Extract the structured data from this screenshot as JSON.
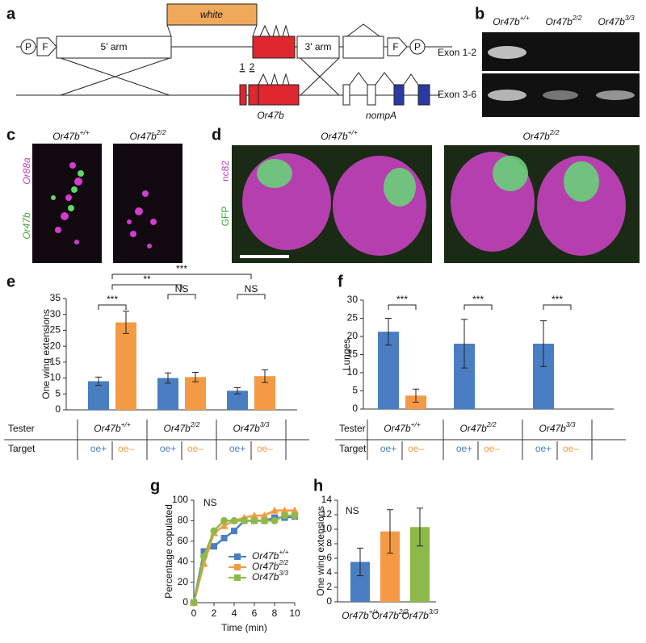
{
  "panels": {
    "a": {
      "label": "a",
      "white": "white",
      "promoter": "P",
      "frt": "F",
      "arm5": "5' arm",
      "arm3": "3' arm",
      "exon1": "1",
      "exon2": "2",
      "gene1": "Or47b",
      "gene2": "nompA"
    },
    "b": {
      "label": "b",
      "genotypes": [
        "Or47b+/+",
        "Or47b2/2",
        "Or47b3/3"
      ],
      "rows": [
        "Exon 1-2",
        "Exon 3-6"
      ]
    },
    "c": {
      "label": "c",
      "genotypes": [
        "Or47b+/+",
        "Or47b2/2"
      ],
      "stain1": "Or88a",
      "stain2": "Or47b"
    },
    "d": {
      "label": "d",
      "genotypes": [
        "Or47b+/+",
        "Or47b2/2"
      ],
      "stain1": "nc82",
      "stain2": "GFP"
    }
  },
  "chart_data": [
    {
      "type": "bar",
      "panel": "e",
      "ylabel": "One wing extensions",
      "row1": "Tester",
      "row2": "Target",
      "categories": [
        "Or47b+/+",
        "Or47b2/2",
        "Or47b3/3"
      ],
      "series": [
        {
          "name": "oe+",
          "color": "#4a7ec2",
          "values": [
            9,
            10,
            6
          ],
          "errors": [
            1.3,
            1.6,
            1
          ]
        },
        {
          "name": "oe–",
          "color": "#f59a44",
          "values": [
            27.5,
            10.3,
            10.6
          ],
          "errors": [
            3.5,
            1.5,
            2
          ]
        }
      ],
      "annotations": [
        "***",
        "**",
        "NS",
        "***",
        "NS"
      ],
      "ylim": [
        0,
        35
      ],
      "yticks": [
        0,
        5,
        10,
        15,
        20,
        25,
        30,
        35
      ]
    },
    {
      "type": "bar",
      "panel": "f",
      "ylabel": "Lunges",
      "row1": "Tester",
      "row2": "Target",
      "categories": [
        "Or47b+/+",
        "Or47b2/2",
        "Or47b3/3"
      ],
      "series": [
        {
          "name": "oe+",
          "color": "#4a7ec2",
          "values": [
            21.3,
            18,
            18
          ],
          "errors": [
            3.7,
            6.7,
            6.3
          ]
        },
        {
          "name": "oe–",
          "color": "#f59a44",
          "values": [
            3.7,
            0,
            0
          ],
          "errors": [
            1.8,
            0,
            0
          ]
        }
      ],
      "annotations": [
        "***",
        "***",
        "***"
      ],
      "ylim": [
        0,
        30
      ],
      "yticks": [
        0,
        5,
        10,
        15,
        20,
        25,
        30
      ]
    },
    {
      "type": "line",
      "panel": "g",
      "xlabel": "Time (min)",
      "ylabel": "Percentage copulated",
      "annotation": "NS",
      "x": [
        0,
        1,
        2,
        3,
        4,
        5,
        6,
        7,
        8,
        9,
        10
      ],
      "series": [
        {
          "name": "Or47b+/+",
          "color": "#4a7ec2",
          "marker": "square",
          "values": [
            0,
            50,
            55,
            63,
            70,
            80,
            80,
            80,
            83,
            83,
            84
          ]
        },
        {
          "name": "Or47b2/2",
          "color": "#f59a44",
          "marker": "triangle",
          "values": [
            0,
            38,
            68,
            75,
            80,
            83,
            85,
            85,
            90,
            90,
            90
          ]
        },
        {
          "name": "Or47b3/3",
          "color": "#8db94a",
          "marker": "circle",
          "values": [
            0,
            45,
            70,
            80,
            80,
            80,
            80,
            80,
            80,
            85,
            85
          ]
        }
      ],
      "xlim": [
        0,
        10
      ],
      "xticks": [
        0,
        2,
        4,
        6,
        8,
        10
      ],
      "ylim": [
        0,
        100
      ],
      "yticks": [
        0,
        20,
        40,
        60,
        80,
        100
      ]
    },
    {
      "type": "simplebar",
      "panel": "h",
      "ylabel": "One wing extensions",
      "annotation": "NS",
      "categories": [
        "Or47b+/+",
        "Or47b2/2",
        "Or47b3/3"
      ],
      "values": [
        5.5,
        9.7,
        10.3
      ],
      "errors": [
        1.9,
        3,
        2.6
      ],
      "colors": [
        "#4a7ec2",
        "#f59a44",
        "#8db94a"
      ],
      "ylim": [
        0,
        14
      ],
      "yticks": [
        0,
        2,
        4,
        6,
        8,
        10,
        12,
        14
      ]
    }
  ]
}
